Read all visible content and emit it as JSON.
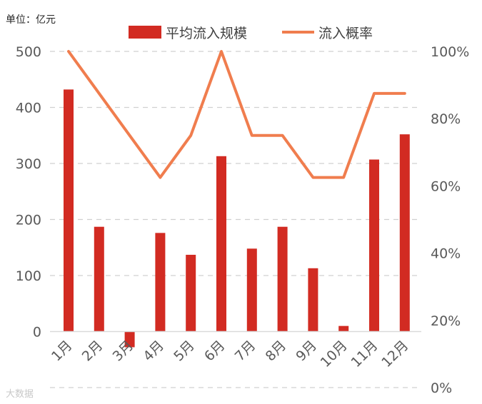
{
  "chart_data": {
    "type": "bar",
    "unit_label": "单位：亿元",
    "categories": [
      "1月",
      "2月",
      "3月",
      "4月",
      "5月",
      "6月",
      "7月",
      "8月",
      "9月",
      "10月",
      "11月",
      "12月"
    ],
    "series": [
      {
        "name": "平均流入规模",
        "type": "bar",
        "axis": "left",
        "color": "#d22b22",
        "values": [
          432,
          187,
          -28,
          176,
          137,
          313,
          148,
          187,
          113,
          10,
          307,
          352
        ]
      },
      {
        "name": "流入概率",
        "type": "line",
        "axis": "right",
        "color": "#f07d4e",
        "values": [
          100,
          87.5,
          75,
          62.5,
          75,
          100,
          75,
          75,
          62.5,
          62.5,
          87.5,
          87.5
        ]
      }
    ],
    "y_left": {
      "ticks": [
        0,
        100,
        200,
        300,
        400,
        500
      ],
      "ylim": [
        -100,
        500
      ]
    },
    "y_right": {
      "ticks": [
        "0%",
        "20%",
        "40%",
        "60%",
        "80%",
        "100%"
      ],
      "ylim": [
        0,
        100
      ]
    },
    "grid": true,
    "legend_position": "top"
  },
  "watermark": "大数据"
}
